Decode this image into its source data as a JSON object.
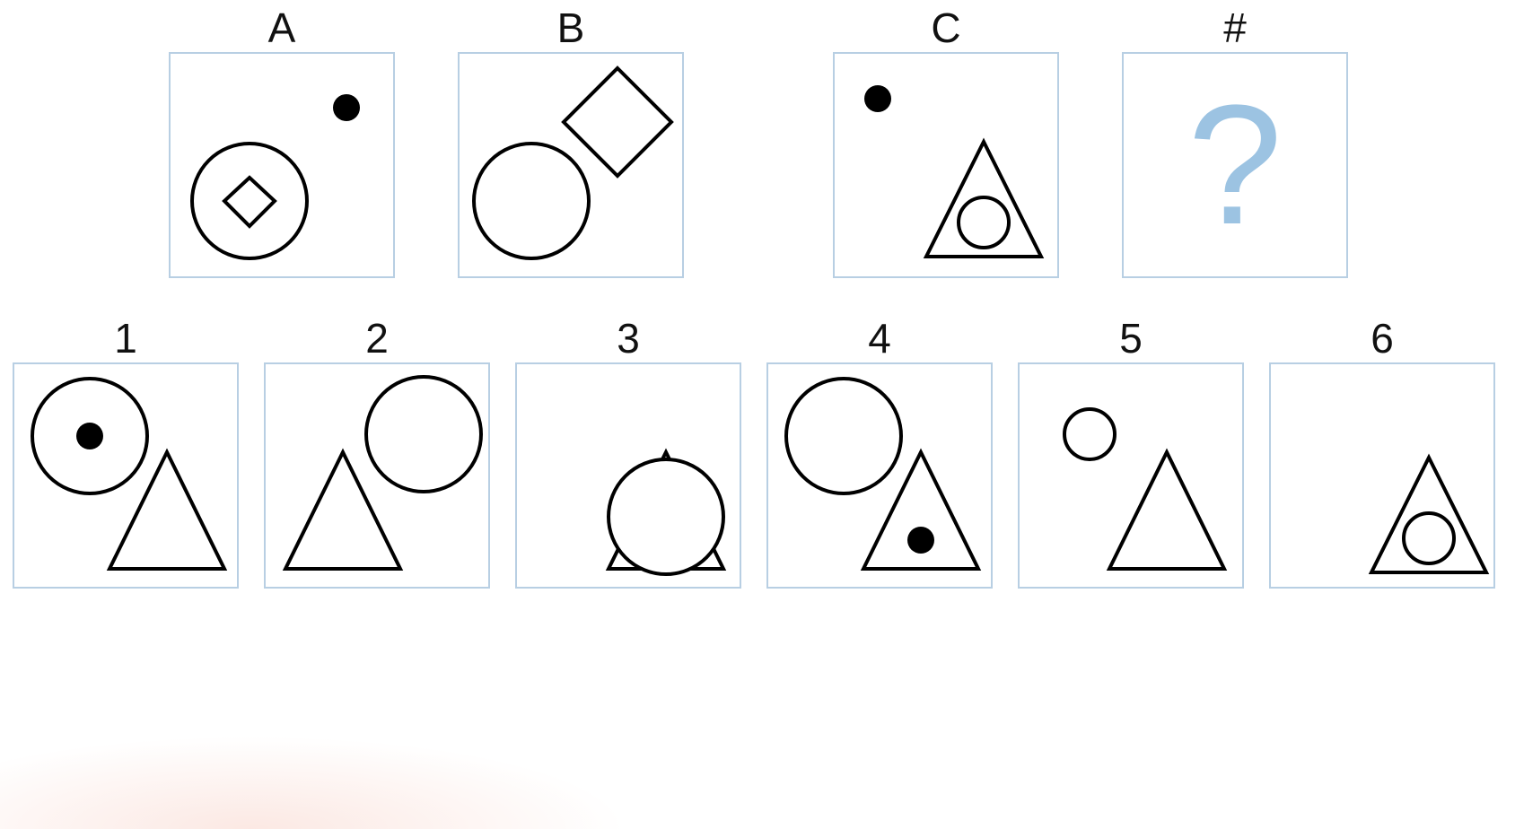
{
  "question_row": {
    "labels": [
      "A",
      "B",
      "C",
      "#"
    ],
    "missing_mark": "?"
  },
  "answer_row": {
    "labels": [
      "1",
      "2",
      "3",
      "4",
      "5",
      "6"
    ]
  },
  "colors": {
    "panel_border": "#b8cfe3",
    "question_mark": "#9cc3e2",
    "stroke": "#000000"
  }
}
